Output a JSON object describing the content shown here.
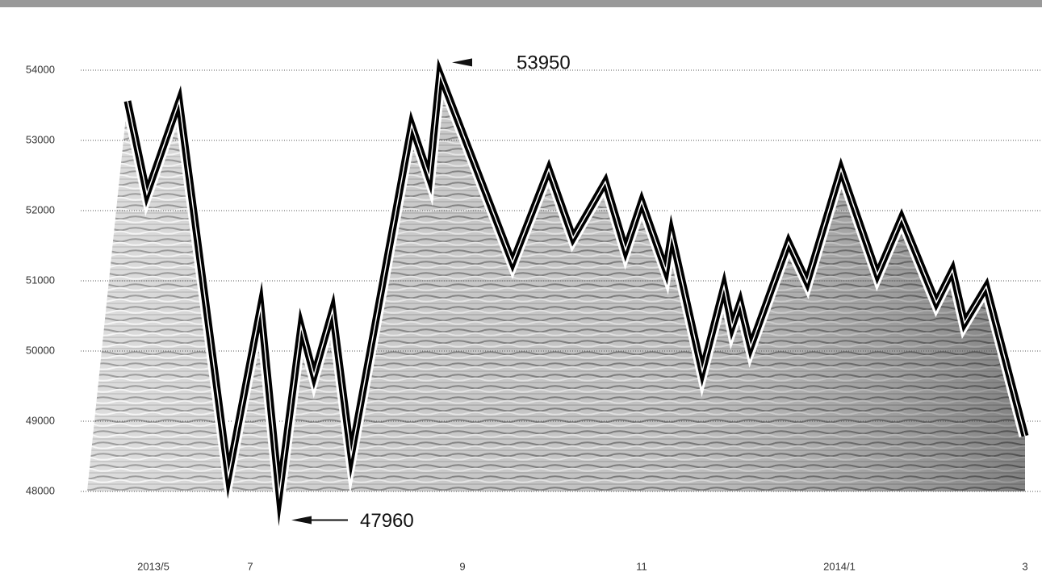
{
  "chart_data": {
    "type": "line",
    "x": [
      58,
      82,
      122,
      183,
      223,
      246,
      273,
      289,
      312,
      335,
      410,
      432,
      445,
      535,
      580,
      610,
      650,
      675,
      695,
      725,
      732,
      770,
      797,
      807,
      817,
      830,
      877,
      900,
      942,
      987,
      1017,
      1060,
      1080,
      1095,
      1122,
      1170
    ],
    "values": [
      53560,
      52240,
      53560,
      48220,
      50630,
      47960,
      50350,
      49650,
      50580,
      48510,
      53220,
      52470,
      53950,
      51260,
      52590,
      51610,
      52410,
      51440,
      52130,
      51150,
      51670,
      49710,
      50920,
      50350,
      50690,
      50060,
      51550,
      50980,
      52590,
      51090,
      51900,
      50690,
      51150,
      50400,
      50920,
      48790
    ],
    "value_labels": [
      null,
      null,
      null,
      null,
      null,
      "47960",
      null,
      null,
      null,
      null,
      null,
      null,
      "53950",
      null,
      null,
      null,
      null,
      null,
      null,
      null,
      null,
      null,
      null,
      null,
      null,
      null,
      null,
      null,
      null,
      null,
      null,
      null,
      null,
      null,
      null,
      null
    ],
    "color": "#000000",
    "xlim": [
      0,
      1190
    ],
    "xticks": [
      {
        "value": 90,
        "label": "2013/5"
      },
      {
        "value": 210,
        "label": "7"
      },
      {
        "value": 473,
        "label": "9"
      },
      {
        "value": 695,
        "label": "11"
      },
      {
        "value": 940,
        "label": "2014/1"
      },
      {
        "value": 1170,
        "label": "3"
      }
    ],
    "ylim": [
      48000,
      54000
    ],
    "yticks": [
      48000,
      49000,
      50000,
      51000,
      52000,
      53000,
      54000
    ],
    "grid": true
  }
}
